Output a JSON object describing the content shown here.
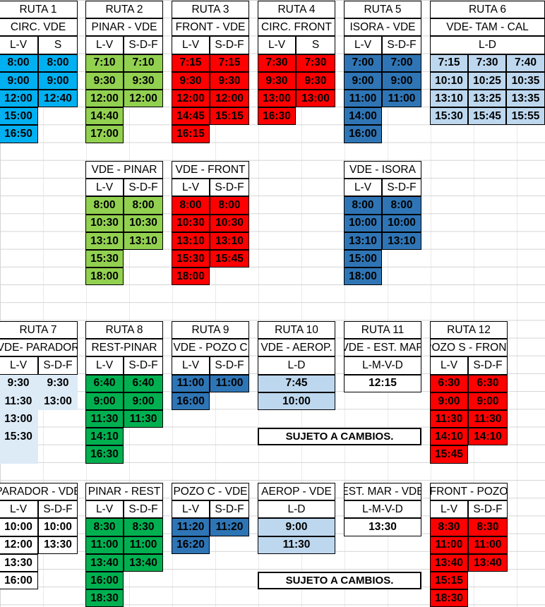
{
  "r1": {
    "title": "RUTA 1",
    "desc": "CIRC. VDE",
    "d1": "L-V",
    "d2": "S",
    "c1": [
      "8:00",
      "9:00",
      "12:00",
      "15:00",
      "16:50"
    ],
    "c2": [
      "8:00",
      "9:00",
      "12:40"
    ]
  },
  "r2": {
    "title": "RUTA 2",
    "desc": "PINAR - VDE",
    "d1": "L-V",
    "d2": "S-D-F",
    "c1": [
      "7:10",
      "9:30",
      "12:00",
      "14:40",
      "17:00"
    ],
    "c2": [
      "7:10",
      "9:30",
      "12:00"
    ],
    "rdesc": "VDE - PINAR",
    "rc1": [
      "8:00",
      "10:30",
      "13:10",
      "15:30",
      "18:00"
    ],
    "rc2": [
      "8:00",
      "10:30",
      "13:10"
    ]
  },
  "r3": {
    "title": "RUTA 3",
    "desc": "FRONT - VDE",
    "d1": "L-V",
    "d2": "S-D-F",
    "c1": [
      "7:15",
      "9:30",
      "12:00",
      "14:45",
      "16:15"
    ],
    "c2": [
      "7:15",
      "9:30",
      "12:00",
      "15:15"
    ],
    "rdesc": "VDE - FRONT",
    "rc1": [
      "8:00",
      "10:30",
      "13:10",
      "15:30",
      "18:00"
    ],
    "rc2": [
      "8:00",
      "10:30",
      "13:10",
      "15:45"
    ]
  },
  "r4": {
    "title": "RUTA 4",
    "desc": "CIRC. FRONT",
    "d1": "L-V",
    "d2": "S",
    "c1": [
      "7:30",
      "9:30",
      "13:00",
      "16:30"
    ],
    "c2": [
      "7:30",
      "9:30",
      "13:00"
    ]
  },
  "r5": {
    "title": "RUTA 5",
    "desc": "ISORA - VDE",
    "d1": "L-V",
    "d2": "S-D-F",
    "c1": [
      "7:00",
      "9:00",
      "11:00",
      "14:00",
      "16:00"
    ],
    "c2": [
      "7:00",
      "9:00",
      "11:00"
    ],
    "rdesc": "VDE - ISORA",
    "rc1": [
      "8:00",
      "10:00",
      "13:10",
      "15:00",
      "18:00"
    ],
    "rc2": [
      "8:00",
      "10:00",
      "13:10"
    ]
  },
  "r6": {
    "title": "RUTA 6",
    "desc": "VDE- TAM - CAL",
    "d": "L-D",
    "rows": [
      [
        "7:15",
        "7:30",
        "7:40"
      ],
      [
        "10:10",
        "10:25",
        "10:35"
      ],
      [
        "13:10",
        "13:25",
        "13:35"
      ],
      [
        "15:30",
        "15:45",
        "15:55"
      ]
    ]
  },
  "r7": {
    "title": "RUTA 7",
    "desc": "VDE- PARADOR",
    "d1": "L-V",
    "d2": "S-D-F",
    "c1": [
      "9:30",
      "11:30",
      "13:00",
      "15:30"
    ],
    "c2": [
      "9:30",
      "13:00"
    ],
    "rdesc": "PARADOR - VDE",
    "rc1": [
      "10:00",
      "12:00",
      "13:30",
      "16:00"
    ],
    "rc2": [
      "10:00",
      "13:30"
    ]
  },
  "r8": {
    "title": "RUTA 8",
    "desc": "REST-PINAR",
    "d1": "L-V",
    "d2": "S-D-F",
    "c1": [
      "6:40",
      "9:00",
      "11:30",
      "14:10",
      "16:30"
    ],
    "c2": [
      "6:40",
      "9:00",
      "11:30"
    ],
    "rdesc": "PINAR - REST",
    "rc1": [
      "8:30",
      "11:00",
      "13:40",
      "16:00",
      "18:30"
    ],
    "rc2": [
      "8:30",
      "11:00",
      "13:40"
    ]
  },
  "r9": {
    "title": "RUTA 9",
    "desc": "VDE - POZO C",
    "d1": "L-V",
    "d2": "S-D-F",
    "c1": [
      "11:00",
      "16:00"
    ],
    "c2": [
      "11:00"
    ],
    "rdesc": "POZO C - VDE",
    "rc1": [
      "11:20",
      "16:20"
    ],
    "rc2": [
      "11:20"
    ]
  },
  "r10": {
    "title": "RUTA 10",
    "desc": "VDE - AEROP.",
    "d": "L-D",
    "c": [
      "7:45",
      "10:00"
    ],
    "rdesc": "AEROP - VDE",
    "rc": [
      "9:00",
      "11:30"
    ]
  },
  "r11": {
    "title": "RUTA 11",
    "desc": "VDE - EST. MAR",
    "d": "L-M-V-D",
    "c": [
      "12:15"
    ],
    "rdesc": "EST. MAR - VDE",
    "rc": [
      "13:30"
    ]
  },
  "r12": {
    "title": "RUTA 12",
    "desc": "POZO S - FRONT",
    "d1": "L-V",
    "d2": "S-D-F",
    "c1": [
      "6:30",
      "9:00",
      "11:30",
      "14:10",
      "15:45"
    ],
    "c2": [
      "6:30",
      "9:00",
      "11:30",
      "14:10"
    ],
    "rdesc": "FRONT - POZO",
    "rc1": [
      "8:30",
      "11:00",
      "13:40",
      "15:15",
      "18:30"
    ],
    "rc2": [
      "8:30",
      "11:00",
      "13:40"
    ]
  },
  "notice": "SUJETO A CAMBIOS.",
  "colors": {
    "red": "#ff0000",
    "light_green": "#92d050",
    "dark_green": "#00b050",
    "dark_blue": "#2f75b5",
    "light_blue": "#bdd7ee",
    "cyan": "#00b0f0"
  }
}
